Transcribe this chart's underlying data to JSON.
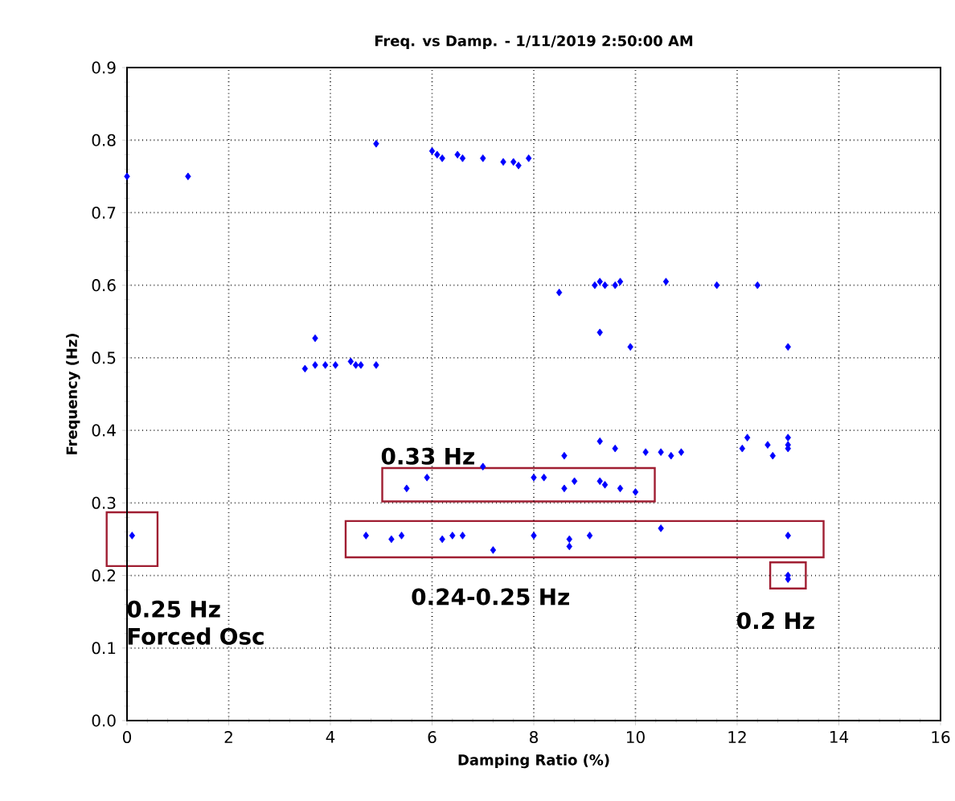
{
  "chart_data": {
    "type": "scatter",
    "title": "Freq. vs Damp. - 1/11/2019 2:50:00 AM",
    "xlabel": "Damping Ratio (%)",
    "ylabel": "Frequency (Hz)",
    "xlim": [
      0,
      16
    ],
    "ylim": [
      0,
      0.9
    ],
    "xticks": [
      0,
      2,
      4,
      6,
      8,
      10,
      12,
      14,
      16
    ],
    "yticks": [
      {
        "value": 0,
        "label": "0.0"
      },
      0.1,
      0.2,
      0.3,
      0.4,
      0.5,
      0.6,
      0.7,
      0.8,
      0.9
    ],
    "grid": true,
    "marker": "diamond",
    "series": [
      {
        "color": "#0000ff",
        "x": [
          0,
          1.2,
          4.9,
          6.0,
          6.1,
          6.2,
          6.5,
          6.6,
          7.0,
          7.4,
          7.6,
          7.7,
          7.9,
          8.5,
          9.2,
          9.3,
          9.4,
          9.6,
          9.7,
          10.6,
          11.6,
          12.4,
          9.3,
          3.7,
          9.9,
          13.0,
          3.5,
          3.7,
          3.9,
          4.1,
          4.4,
          4.5,
          4.6,
          4.9,
          8.6,
          9.3,
          9.6,
          10.2,
          10.5,
          10.7,
          10.9,
          12.2,
          12.1,
          12.6,
          12.7,
          13.0,
          13.0,
          13.0,
          5.5,
          5.9,
          7.0,
          8.0,
          8.2,
          8.6,
          8.8,
          9.3,
          9.4,
          9.7,
          10.0,
          0.1,
          4.7,
          5.2,
          5.4,
          6.2,
          6.4,
          6.6,
          7.2,
          8.0,
          8.7,
          8.7,
          9.1,
          10.5,
          13.0,
          13.0,
          13.0
        ],
        "values": [
          0.75,
          0.75,
          0.795,
          0.785,
          0.78,
          0.775,
          0.78,
          0.775,
          0.775,
          0.77,
          0.77,
          0.765,
          0.775,
          0.59,
          0.6,
          0.605,
          0.6,
          0.6,
          0.605,
          0.605,
          0.6,
          0.6,
          0.535,
          0.527,
          0.515,
          0.515,
          0.485,
          0.49,
          0.49,
          0.49,
          0.495,
          0.49,
          0.49,
          0.49,
          0.365,
          0.385,
          0.375,
          0.37,
          0.37,
          0.365,
          0.37,
          0.39,
          0.375,
          0.38,
          0.365,
          0.39,
          0.38,
          0.375,
          0.32,
          0.335,
          0.35,
          0.335,
          0.335,
          0.32,
          0.33,
          0.33,
          0.325,
          0.32,
          0.315,
          0.255,
          0.255,
          0.25,
          0.255,
          0.25,
          0.255,
          0.255,
          0.235,
          0.255,
          0.25,
          0.24,
          0.255,
          0.265,
          0.255,
          0.2,
          0.195
        ]
      }
    ],
    "annotations": [
      {
        "text": "0.25 Hz Forced Osc",
        "x": 0.1,
        "y": 0.25
      },
      {
        "text": "0.33 Hz",
        "x": 8.0,
        "y": 0.335
      },
      {
        "text": "0.24-0.25 Hz",
        "x": 9.0,
        "y": 0.25
      },
      {
        "text": "0.2 Hz",
        "x": 13.0,
        "y": 0.2
      }
    ]
  }
}
